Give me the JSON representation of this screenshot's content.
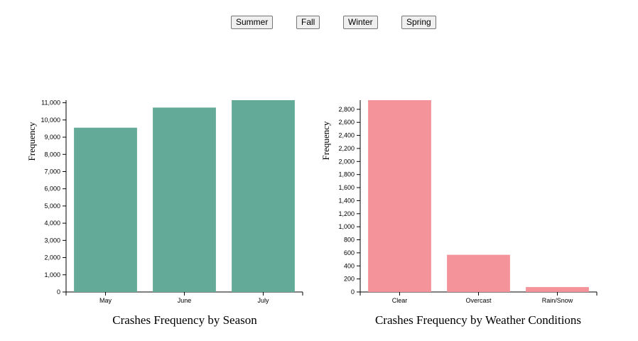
{
  "buttons": [
    {
      "label": "Summer"
    },
    {
      "label": "Fall"
    },
    {
      "label": "Winter"
    },
    {
      "label": "Spring"
    }
  ],
  "chart_data": [
    {
      "type": "bar",
      "title": "Crashes Frequency by Season",
      "xlabel": "",
      "ylabel": "Frequency",
      "categories": [
        "May",
        "June",
        "July"
      ],
      "values": [
        9550,
        10720,
        11150
      ],
      "ylim": [
        0,
        11150
      ],
      "yticks": [
        0,
        1000,
        2000,
        3000,
        4000,
        5000,
        6000,
        7000,
        8000,
        9000,
        10000,
        11000
      ],
      "ytick_labels": [
        "0",
        "1,000",
        "2,000",
        "3,000",
        "4,000",
        "5,000",
        "6,000",
        "7,000",
        "8,000",
        "9,000",
        "10,000",
        "11,000"
      ],
      "color": "#63ab98",
      "grid": false
    },
    {
      "type": "bar",
      "title": "Crashes Frequency by Weather Conditions",
      "xlabel": "",
      "ylabel": "Frequency",
      "categories": [
        "Clear",
        "Overcast",
        "Rain/Snow"
      ],
      "values": [
        2940,
        570,
        75
      ],
      "ylim": [
        0,
        2940
      ],
      "yticks": [
        0,
        200,
        400,
        600,
        800,
        1000,
        1200,
        1400,
        1600,
        1800,
        2000,
        2200,
        2400,
        2600,
        2800
      ],
      "ytick_labels": [
        "0",
        "200",
        "400",
        "600",
        "800",
        "1,000",
        "1,200",
        "1,400",
        "1,600",
        "1,800",
        "2,000",
        "2,200",
        "2,400",
        "2,600",
        "2,800"
      ],
      "color": "#f4939a",
      "grid": false
    }
  ]
}
